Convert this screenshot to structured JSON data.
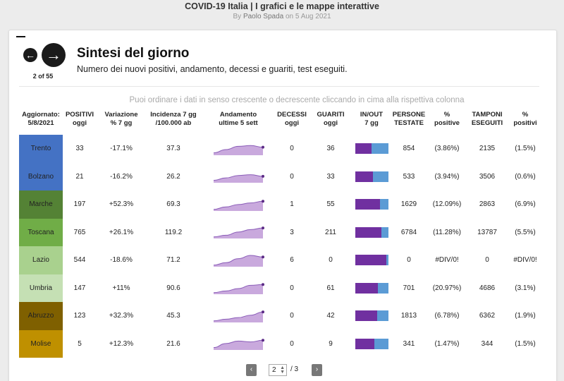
{
  "header": {
    "title": "COVID-19 Italia | I grafici e le mappe interattive",
    "byline_prefix": "By",
    "author": "Paolo Spada",
    "byline_suffix": "on 5 Aug 2021"
  },
  "card": {
    "prev_icon": "←",
    "next_icon": "→",
    "counter": "2 of 55",
    "title": "Sintesi del giorno",
    "subtitle": "Numero dei nuovi positivi, andamento, decessi e guariti, test eseguiti.",
    "hint": "Puoi ordinare i dati in senso crescente o decrescente cliccando in cima alla rispettiva colonna"
  },
  "colors": {
    "inout_in": "#7030a0",
    "inout_out": "#5b9bd5",
    "spark_fill": "#c9a9dd",
    "spark_line": "#8a5cb8"
  },
  "columns": [
    "Aggiornato:\n5/8/2021",
    "POSITIVI\noggi",
    "Variazione\n% 7 gg",
    "Incidenza 7 gg\n/100.000 ab",
    "Andamento\nultime 5 sett",
    "DECESSI\noggi",
    "GUARITI\noggi",
    "IN/OUT\n7 gg",
    "PERSONE\nTESTATE",
    "%\npositive",
    "TAMPONI\nESEGUITI",
    "%\npositivi"
  ],
  "rows": [
    {
      "region": "Trento",
      "color": "#4472c4",
      "positivi": "33",
      "variazione": "-17.1%",
      "incidenza": "37.3",
      "trend": [
        3,
        7,
        11,
        12,
        10
      ],
      "decessi": "0",
      "guariti": "36",
      "inout": 0.49,
      "testate": "854",
      "pct_positive": "(3.86%)",
      "tamponi": "2135",
      "pct_positivi": "(1.5%)"
    },
    {
      "region": "Bolzano",
      "color": "#4472c4",
      "positivi": "21",
      "variazione": "-16.2%",
      "incidenza": "26.2",
      "trend": [
        3,
        6,
        9,
        10,
        8
      ],
      "decessi": "0",
      "guariti": "33",
      "inout": 0.55,
      "testate": "533",
      "pct_positive": "(3.94%)",
      "tamponi": "3506",
      "pct_positivi": "(0.6%)"
    },
    {
      "region": "Marche",
      "color": "#548235",
      "positivi": "197",
      "variazione": "+52.3%",
      "incidenza": "69.3",
      "trend": [
        2,
        5,
        8,
        10,
        12
      ],
      "decessi": "1",
      "guariti": "55",
      "inout": 0.75,
      "testate": "1629",
      "pct_positive": "(12.09%)",
      "tamponi": "2863",
      "pct_positivi": "(6.9%)"
    },
    {
      "region": "Toscana",
      "color": "#70ad47",
      "positivi": "765",
      "variazione": "+26.1%",
      "incidenza": "119.2",
      "trend": [
        2,
        4,
        8,
        11,
        13
      ],
      "decessi": "3",
      "guariti": "211",
      "inout": 0.8,
      "testate": "6784",
      "pct_positive": "(11.28%)",
      "tamponi": "13787",
      "pct_positivi": "(5.5%)"
    },
    {
      "region": "Lazio",
      "color": "#a9d18e",
      "positivi": "544",
      "variazione": "-18.6%",
      "incidenza": "71.2",
      "trend": [
        2,
        5,
        10,
        14,
        12
      ],
      "decessi": "6",
      "guariti": "0",
      "inout": 0.95,
      "testate": "0",
      "pct_positive": "#DIV/0!",
      "tamponi": "0",
      "pct_positivi": "#DIV/0!"
    },
    {
      "region": "Umbria",
      "color": "#c5e0b4",
      "positivi": "147",
      "variazione": "+11%",
      "incidenza": "90.6",
      "trend": [
        2,
        4,
        7,
        11,
        12
      ],
      "decessi": "0",
      "guariti": "61",
      "inout": 0.7,
      "testate": "701",
      "pct_positive": "(20.97%)",
      "tamponi": "4686",
      "pct_positivi": "(3.1%)"
    },
    {
      "region": "Abruzzo",
      "color": "#7f6000",
      "positivi": "123",
      "variazione": "+32.3%",
      "incidenza": "45.3",
      "trend": [
        2,
        4,
        6,
        9,
        13
      ],
      "decessi": "0",
      "guariti": "42",
      "inout": 0.66,
      "testate": "1813",
      "pct_positive": "(6.78%)",
      "tamponi": "6362",
      "pct_positivi": "(1.9%)"
    },
    {
      "region": "Molise",
      "color": "#bf9000",
      "positivi": "5",
      "variazione": "+12.3%",
      "incidenza": "21.6",
      "trend": [
        3,
        8,
        11,
        10,
        12
      ],
      "decessi": "0",
      "guariti": "9",
      "inout": 0.58,
      "testate": "341",
      "pct_positive": "(1.47%)",
      "tamponi": "344",
      "pct_positivi": "(1.5%)"
    }
  ],
  "pager": {
    "prev": "‹",
    "next": "›",
    "current": "2",
    "total": "/ 3"
  }
}
